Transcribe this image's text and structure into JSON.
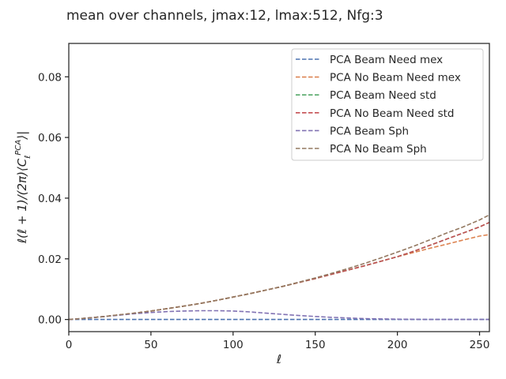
{
  "chart_data": {
    "type": "line",
    "title": "mean over channels, jmax:12, lmax:512, Nfg:3",
    "xlabel": "ℓ",
    "ylabel": "ℓ(ℓ + 1)/(2π)⟨C_ℓ^PCA⟩|",
    "xlim": [
      0,
      256
    ],
    "ylim": [
      -0.004,
      0.091
    ],
    "xticks": [
      0,
      50,
      100,
      150,
      200,
      250
    ],
    "yticks": [
      0.0,
      0.02,
      0.04,
      0.06,
      0.08
    ],
    "xtick_labels": [
      "0",
      "50",
      "100",
      "150",
      "200",
      "250"
    ],
    "ytick_labels": [
      "0.00",
      "0.02",
      "0.04",
      "0.06",
      "0.08"
    ],
    "grid": false,
    "legend_position": "top-right",
    "line_style": "dashed",
    "x": [
      0,
      10,
      20,
      30,
      40,
      50,
      60,
      70,
      80,
      90,
      100,
      110,
      120,
      130,
      140,
      150,
      160,
      170,
      180,
      190,
      200,
      210,
      220,
      230,
      240,
      250,
      256
    ],
    "series": [
      {
        "name": "PCA Beam Need mex",
        "color": "#4c72b0",
        "values": [
          0,
          0,
          0,
          0,
          0,
          0,
          0,
          0,
          0,
          0,
          0,
          0,
          0,
          0,
          0,
          0,
          0,
          0,
          0,
          0,
          0,
          0,
          0,
          0,
          0,
          0,
          0
        ]
      },
      {
        "name": "PCA No Beam Need mex",
        "color": "#dd8452",
        "values": [
          0,
          0.0004,
          0.0009,
          0.0015,
          0.0021,
          0.0028,
          0.0036,
          0.0044,
          0.0053,
          0.0063,
          0.0074,
          0.0085,
          0.0097,
          0.0109,
          0.0122,
          0.0135,
          0.0149,
          0.0163,
          0.0177,
          0.0192,
          0.0207,
          0.0221,
          0.0235,
          0.0248,
          0.0262,
          0.0275,
          0.028
        ]
      },
      {
        "name": "PCA Beam Need std",
        "color": "#55a868",
        "values": [
          0,
          0.0004,
          0.0009,
          0.0015,
          0.0021,
          0.0028,
          0.0036,
          0.0044,
          0.0053,
          0.0063,
          0.0074,
          0.0085,
          0.0097,
          0.0109,
          0.0122,
          0.0135,
          0.0149,
          0.0163,
          0.0177,
          0.0192,
          0.0207,
          0.0225,
          0.0245,
          0.0265,
          0.0285,
          0.0305,
          0.032
        ]
      },
      {
        "name": "PCA No Beam Need std",
        "color": "#c44e52",
        "values": [
          0,
          0.0004,
          0.0009,
          0.0015,
          0.0021,
          0.0028,
          0.0036,
          0.0044,
          0.0053,
          0.0063,
          0.0074,
          0.0085,
          0.0097,
          0.0109,
          0.0122,
          0.0135,
          0.0149,
          0.0163,
          0.0177,
          0.0192,
          0.0207,
          0.0225,
          0.0245,
          0.0265,
          0.0285,
          0.0305,
          0.032
        ]
      },
      {
        "name": "PCA Beam Sph",
        "color": "#8172b3",
        "values": [
          0,
          0.0004,
          0.0009,
          0.0014,
          0.0019,
          0.0023,
          0.0026,
          0.0028,
          0.0029,
          0.0029,
          0.0028,
          0.0025,
          0.0021,
          0.0017,
          0.0013,
          0.001,
          0.0007,
          0.0005,
          0.0003,
          0.0002,
          0.0001,
          5e-05,
          0,
          0,
          0,
          0,
          0
        ]
      },
      {
        "name": "PCA No Beam Sph",
        "color": "#937860",
        "values": [
          0,
          0.0004,
          0.0009,
          0.0015,
          0.0021,
          0.0028,
          0.0036,
          0.0044,
          0.0053,
          0.0063,
          0.0074,
          0.0085,
          0.0097,
          0.0109,
          0.0123,
          0.0137,
          0.0152,
          0.0168,
          0.0185,
          0.0203,
          0.0222,
          0.0242,
          0.0263,
          0.0285,
          0.0305,
          0.0328,
          0.0345
        ]
      }
    ]
  }
}
